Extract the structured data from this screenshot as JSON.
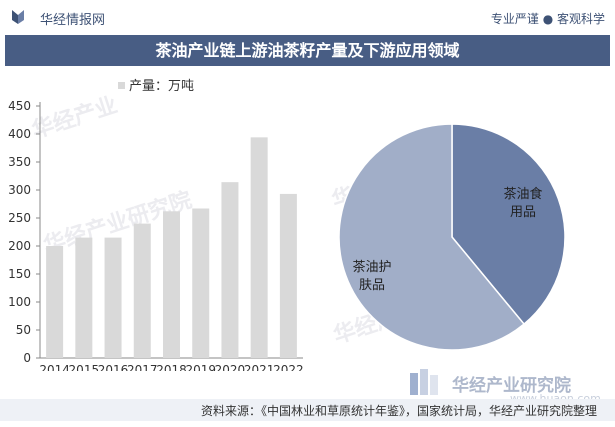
{
  "header": {
    "brand": "华经情报网",
    "slogan": "专业严谨 ● 客观科学"
  },
  "title": "茶油产业链上游油茶籽产量及下游应用领域",
  "footer": {
    "brand": "华经产业研究院",
    "url": "www.huaon.com",
    "source": "资料来源：《中国林业和草原统计年鉴》，国家统计局，华经产业研究院整理"
  },
  "watermarks": [
    "华经产业",
    "华经产业研究院",
    "华经产业",
    "华经产业研究院"
  ],
  "colors": {
    "title_bar": "#485d84",
    "bar": "#d9d9d9",
    "pie_food": "#6a7ea6",
    "pie_skincare": "#a1aec8",
    "source_bg": "#eef1f6"
  },
  "chart_data": [
    {
      "type": "bar",
      "legend": "产量：万吨",
      "legend_position": "top-left",
      "categories": [
        "2014",
        "2015",
        "2016",
        "2017",
        "2018",
        "2019",
        "2020",
        "2021",
        "2022"
      ],
      "values": [
        200,
        215,
        215,
        240,
        262,
        267,
        314,
        394,
        293
      ],
      "yticks": [
        "0",
        "50",
        "100",
        "150",
        "200",
        "250",
        "300",
        "350",
        "400",
        "450"
      ],
      "ylim": [
        0,
        450
      ],
      "grid": false
    },
    {
      "type": "pie",
      "slices": [
        {
          "label": "茶油食用品",
          "value": 39
        },
        {
          "label": "茶油护肤品",
          "value": 61
        }
      ]
    }
  ]
}
